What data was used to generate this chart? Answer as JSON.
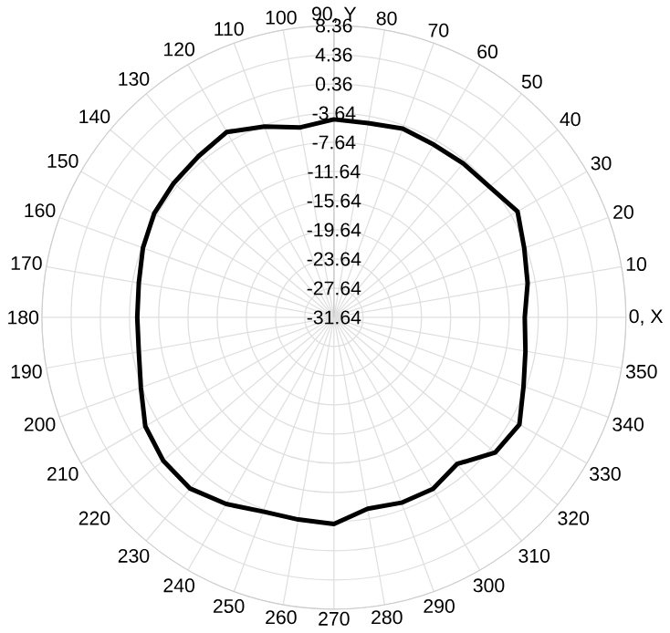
{
  "chart_data": {
    "type": "radar",
    "categories": [
      "90, Y",
      "80",
      "70",
      "60",
      "50",
      "40",
      "30",
      "20",
      "10",
      "0, X",
      "350",
      "340",
      "330",
      "320",
      "310",
      "300",
      "290",
      "280",
      "270",
      "260",
      "250",
      "240",
      "230",
      "220",
      "210",
      "200",
      "190",
      "180",
      "170",
      "160",
      "150",
      "140",
      "130",
      "120",
      "110",
      "100"
    ],
    "series": [
      {
        "color": "#000000",
        "values": [
          -4.5,
          -4.6,
          -4.1,
          -4.3,
          -4.1,
          -3.8,
          -2.6,
          -3.9,
          -4.7,
          -5.5,
          -5.0,
          -4.0,
          -2.3,
          -2.8,
          -5.4,
          -4.5,
          -4.6,
          -5.0,
          -3.3,
          -3.5,
          -3.3,
          -2.1,
          -1.0,
          -1.1,
          -1.8,
          -3.5,
          -4.5,
          -4.7,
          -4.5,
          -3.8,
          -3.2,
          -3.0,
          -2.8,
          -2.3,
          -3.8,
          -5.2
        ]
      }
    ],
    "ylim": [
      -31.64,
      8.36
    ],
    "yticks": [
      8.36,
      4.36,
      0.36,
      -3.64,
      -7.64,
      -11.64,
      -15.64,
      -19.64,
      -23.64,
      -27.64,
      -31.64
    ],
    "grid": true
  }
}
